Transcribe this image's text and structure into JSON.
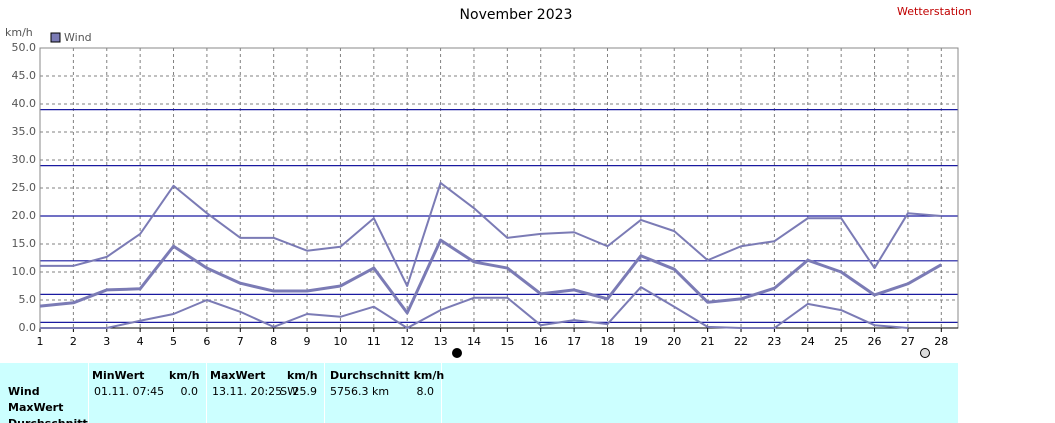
{
  "chart_data": {
    "type": "line",
    "title": "November 2023",
    "corner_label": "Wetterstation",
    "y_unit": "km/h",
    "legend": "Wind",
    "x": [
      1,
      2,
      3,
      4,
      5,
      6,
      7,
      8,
      9,
      10,
      11,
      12,
      13,
      14,
      15,
      16,
      17,
      18,
      19,
      20,
      21,
      22,
      23,
      24,
      25,
      26,
      27,
      28
    ],
    "xlim": [
      1,
      28.5
    ],
    "xticks": [
      1,
      2,
      3,
      4,
      5,
      6,
      7,
      8,
      9,
      10,
      11,
      12,
      13,
      14,
      15,
      16,
      17,
      18,
      19,
      20,
      21,
      22,
      23,
      24,
      25,
      26,
      27,
      28
    ],
    "ylim": [
      0,
      50
    ],
    "yticks": [
      {
        "value": 0,
        "label": "0.0"
      },
      {
        "value": 5,
        "label": "5.0"
      },
      {
        "value": 10,
        "label": "10.0"
      },
      {
        "value": 15,
        "label": "15.0"
      },
      {
        "value": 20,
        "label": "20.0"
      },
      {
        "value": 25,
        "label": "25.0"
      },
      {
        "value": 30,
        "label": "30.0"
      },
      {
        "value": 35,
        "label": "35.0"
      },
      {
        "value": 40,
        "label": "40.0"
      },
      {
        "value": 45,
        "label": "45.0"
      },
      {
        "value": 50,
        "label": "50.0"
      }
    ],
    "grid": true,
    "reference_lines": [
      1,
      6,
      12,
      20,
      29,
      39
    ],
    "reference_color": "#1a1aa0",
    "series": [
      {
        "color": "#7b7bb5",
        "width": 2,
        "values": [
          11.1,
          11.1,
          12.7,
          16.8,
          25.4,
          20.5,
          16.1,
          16.1,
          13.8,
          14.5,
          19.6,
          7.5,
          25.9,
          21.4,
          16.1,
          16.8,
          17.1,
          14.6,
          19.3,
          17.3,
          12.1,
          14.6,
          15.5,
          19.6,
          19.6,
          10.7,
          20.5,
          20.0
        ]
      },
      {
        "color": "#7b7bb5",
        "width": 3,
        "values": [
          3.9,
          4.5,
          6.8,
          7.0,
          14.6,
          10.7,
          8.0,
          6.6,
          6.6,
          7.5,
          10.7,
          2.7,
          15.7,
          11.8,
          10.7,
          6.1,
          6.8,
          5.2,
          12.9,
          10.5,
          4.6,
          5.2,
          7.1,
          12.1,
          10.0,
          5.9,
          7.9,
          11.3
        ]
      },
      {
        "color": "#7b7bb5",
        "width": 2,
        "values": [
          0,
          0,
          0,
          1.3,
          2.5,
          5.0,
          2.9,
          0.2,
          2.5,
          2.0,
          3.8,
          0,
          3.2,
          5.4,
          5.4,
          0.5,
          1.4,
          0.7,
          7.3,
          3.8,
          0.2,
          0,
          0,
          4.3,
          3.2,
          0.5,
          0,
          null
        ]
      }
    ]
  },
  "table": {
    "headers": [
      [
        "MinWert",
        "km/h"
      ],
      [
        "MaxWert",
        "km/h"
      ],
      [
        "Durchschnitt km/h"
      ]
    ],
    "row_labels": [
      "Wind",
      "MaxWert",
      "Durchschnitt"
    ],
    "rows": [
      [
        [
          "01.11.  07:45",
          "0.0"
        ],
        [
          "13.11.  20:25",
          "SW",
          "25.9"
        ],
        [
          "5756.3 km",
          "8.0"
        ]
      ]
    ]
  }
}
